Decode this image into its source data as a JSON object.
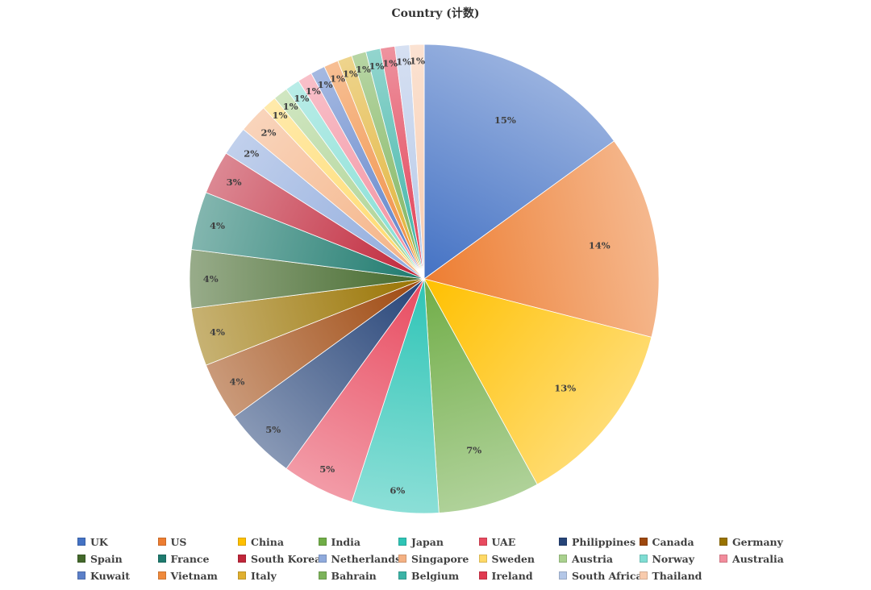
{
  "chart_data": {
    "type": "pie",
    "title": "Country (计数)",
    "legend_position": "bottom",
    "slices": [
      {
        "label": "UK",
        "value": 15,
        "display": "15%",
        "color": "#4472C4"
      },
      {
        "label": "US",
        "value": 14,
        "display": "14%",
        "color": "#ED7D31"
      },
      {
        "label": "China",
        "value": 13,
        "display": "13%",
        "color": "#FFC000"
      },
      {
        "label": "India",
        "value": 7,
        "display": "7%",
        "color": "#70AD47"
      },
      {
        "label": "Japan",
        "value": 6,
        "display": "6%",
        "color": "#2EC4B6"
      },
      {
        "label": "UAE",
        "value": 5,
        "display": "5%",
        "color": "#E84A5F"
      },
      {
        "label": "Philippines",
        "value": 5,
        "display": "5%",
        "color": "#264478"
      },
      {
        "label": "Canada",
        "value": 4,
        "display": "4%",
        "color": "#9E480E"
      },
      {
        "label": "Germany",
        "value": 4,
        "display": "4%",
        "color": "#997300"
      },
      {
        "label": "Spain",
        "value": 4,
        "display": "4%",
        "color": "#43682B"
      },
      {
        "label": "France",
        "value": 4,
        "display": "4%",
        "color": "#1E7A6E"
      },
      {
        "label": "South Korea",
        "value": 3,
        "display": "3%",
        "color": "#C0263A"
      },
      {
        "label": "Netherlands",
        "value": 2,
        "display": "2%",
        "color": "#8FAADC"
      },
      {
        "label": "Singapore",
        "value": 2,
        "display": "2%",
        "color": "#F4B183"
      },
      {
        "label": "Sweden",
        "value": 1,
        "display": "1%",
        "color": "#FFD966"
      },
      {
        "label": "Austria",
        "value": 1,
        "display": "1%",
        "color": "#A9D18E"
      },
      {
        "label": "Norway",
        "value": 1,
        "display": "1%",
        "color": "#7FDDD3"
      },
      {
        "label": "Australia",
        "value": 1,
        "display": "1%",
        "color": "#F28C9C"
      },
      {
        "label": "Kuwait",
        "value": 1,
        "display": "1%",
        "color": "#5B7FC8"
      },
      {
        "label": "Vietnam",
        "value": 1,
        "display": "1%",
        "color": "#F08A3C"
      },
      {
        "label": "Italy",
        "value": 1,
        "display": "1%",
        "color": "#E0B030"
      },
      {
        "label": "Bahrain",
        "value": 1,
        "display": "1%",
        "color": "#7CB35A"
      },
      {
        "label": "Belgium",
        "value": 1,
        "display": "1%",
        "color": "#3BB3A6"
      },
      {
        "label": "Ireland",
        "value": 1,
        "display": "1%",
        "color": "#E03A50"
      },
      {
        "label": "South Africa",
        "value": 1,
        "display": "1%",
        "color": "#B4C7E7"
      },
      {
        "label": "Thailand",
        "value": 1,
        "display": "1%",
        "color": "#F8CBAD"
      }
    ]
  }
}
